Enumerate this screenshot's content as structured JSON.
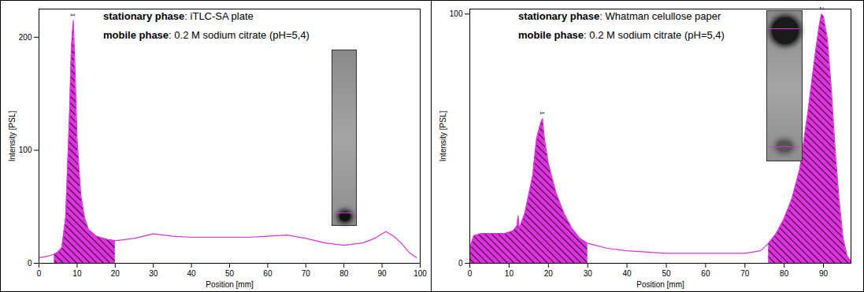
{
  "chart_data": [
    {
      "type": "line",
      "annotations": [
        {
          "bold": "stationary phase",
          "text": ": iTLC-SA plate"
        },
        {
          "bold": "mobile phase",
          "text": ": 0.2 M sodium citrate (pH=5,4)"
        }
      ],
      "xlabel": "Position [mm]",
      "ylabel": "Intensity [PSL]",
      "color": "#dd33dd",
      "x": [
        0,
        2,
        4,
        5,
        6,
        7,
        8,
        8.5,
        9,
        9.5,
        10,
        11,
        12,
        13,
        15,
        18,
        20,
        25,
        30,
        35,
        40,
        45,
        50,
        55,
        60,
        65,
        70,
        75,
        80,
        85,
        88,
        91,
        93,
        95,
        97,
        99
      ],
      "values": [
        5,
        6,
        8,
        10,
        14,
        40,
        130,
        190,
        215,
        170,
        110,
        60,
        40,
        30,
        24,
        21,
        20,
        22,
        26,
        24,
        23,
        23,
        23,
        23,
        24,
        25,
        22,
        18,
        16,
        18,
        22,
        28,
        24,
        18,
        10,
        5
      ],
      "regions": [
        {
          "label": "1",
          "from": 4,
          "to": 20,
          "peak": 9
        }
      ],
      "xlim": [
        0,
        100
      ],
      "xticks": [
        0,
        10,
        20,
        30,
        40,
        50,
        60,
        70,
        80,
        90,
        100
      ],
      "ylim": [
        0,
        225
      ],
      "yticks": [
        0,
        100,
        200
      ]
    },
    {
      "type": "line",
      "annotations": [
        {
          "bold": "stationary phase",
          "text": ": Whatman celullose paper"
        },
        {
          "bold": "mobile phase",
          "text": ": 0.2 M sodium citrate (pH=5,4)"
        }
      ],
      "xlabel": "Position [mm]",
      "ylabel": "Intensity [PSL]",
      "color": "#dd33dd",
      "x": [
        0,
        1,
        3,
        6,
        9,
        11,
        12,
        12.3,
        12.6,
        14,
        16,
        17,
        18,
        18.5,
        19,
        20,
        22,
        24,
        26,
        28,
        30,
        35,
        40,
        50,
        60,
        70,
        74,
        76,
        78,
        80,
        82,
        84,
        86,
        88,
        89,
        89.5,
        90,
        91,
        92,
        93,
        94,
        95,
        96,
        97
      ],
      "values": [
        6,
        11,
        12,
        12,
        12,
        13,
        15,
        19,
        14,
        20,
        35,
        50,
        56,
        58,
        50,
        40,
        28,
        20,
        14,
        10,
        8,
        6,
        5,
        4,
        4,
        4,
        5,
        8,
        12,
        18,
        26,
        38,
        60,
        85,
        96,
        100,
        99,
        90,
        70,
        45,
        25,
        10,
        3,
        1
      ],
      "regions": [
        {
          "label": "1",
          "from": 0,
          "to": 30,
          "peak": 18.5
        },
        {
          "label": "2",
          "from": 75,
          "to": 97,
          "peak": 89.5
        }
      ],
      "xlim": [
        0,
        97
      ],
      "xticks": [
        0,
        10,
        20,
        30,
        40,
        50,
        60,
        70,
        80,
        90
      ],
      "ylim": [
        0,
        102
      ],
      "yticks": [
        0,
        100
      ]
    }
  ]
}
